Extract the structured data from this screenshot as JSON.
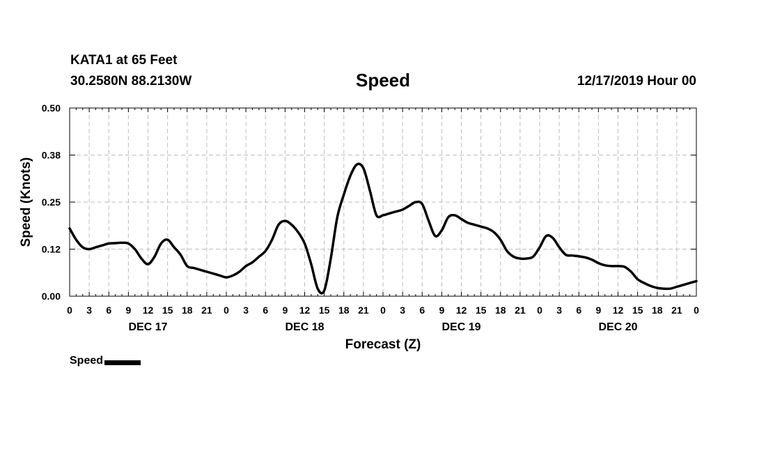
{
  "header": {
    "station": "KATA1 at 65 Feet",
    "coords": "30.2580N 88.2130W",
    "title": "Speed",
    "stamp": "12/17/2019 Hour 00"
  },
  "chart_data": {
    "type": "line",
    "title": "Speed",
    "xlabel": "Forecast (Z)",
    "ylabel": "Speed (Knots)",
    "xlim": [
      0,
      96
    ],
    "ylim": [
      0,
      0.5
    ],
    "yticks": [
      0.0,
      0.125,
      0.25,
      0.375,
      0.5
    ],
    "ytick_labels": [
      "0.00",
      "0.12",
      "0.25",
      "0.38",
      "0.50"
    ],
    "xtick_labels": [
      "0",
      "3",
      "6",
      "9",
      "12",
      "15",
      "18",
      "21",
      "0",
      "3",
      "6",
      "9",
      "12",
      "15",
      "18",
      "21",
      "0",
      "3",
      "6",
      "9",
      "12",
      "15",
      "18",
      "21",
      "0",
      "3",
      "6",
      "9",
      "12",
      "15",
      "18",
      "21",
      "0"
    ],
    "day_labels": [
      {
        "label": "DEC 17",
        "center_hour": 12
      },
      {
        "label": "DEC 18",
        "center_hour": 36
      },
      {
        "label": "DEC 19",
        "center_hour": 60
      },
      {
        "label": "DEC 20",
        "center_hour": 84
      }
    ],
    "grid": true,
    "series": [
      {
        "name": "Speed",
        "color": "#000000",
        "x": [
          0,
          1,
          2,
          3,
          4,
          5,
          6,
          7,
          8,
          9,
          10,
          11,
          12,
          13,
          14,
          15,
          16,
          17,
          18,
          19,
          20,
          21,
          22,
          23,
          24,
          25,
          26,
          27,
          28,
          29,
          30,
          31,
          32,
          33,
          34,
          35,
          36,
          37,
          38,
          39,
          40,
          41,
          42,
          43,
          44,
          45,
          46,
          47,
          48,
          49,
          50,
          51,
          52,
          53,
          54,
          55,
          56,
          57,
          58,
          59,
          60,
          61,
          62,
          63,
          64,
          65,
          66,
          67,
          68,
          69,
          70,
          71,
          72,
          73,
          74,
          75,
          76,
          77,
          78,
          79,
          80,
          81,
          82,
          83,
          84,
          85,
          86,
          87,
          88,
          89,
          90,
          91,
          92,
          93,
          94,
          95,
          96
        ],
        "values": [
          0.18,
          0.15,
          0.13,
          0.125,
          0.13,
          0.135,
          0.14,
          0.141,
          0.142,
          0.14,
          0.125,
          0.1,
          0.085,
          0.105,
          0.14,
          0.15,
          0.13,
          0.11,
          0.08,
          0.075,
          0.07,
          0.065,
          0.06,
          0.055,
          0.05,
          0.055,
          0.065,
          0.08,
          0.09,
          0.105,
          0.12,
          0.15,
          0.19,
          0.2,
          0.19,
          0.17,
          0.14,
          0.085,
          0.02,
          0.015,
          0.1,
          0.21,
          0.27,
          0.32,
          0.35,
          0.34,
          0.28,
          0.215,
          0.215,
          0.22,
          0.225,
          0.23,
          0.24,
          0.25,
          0.245,
          0.2,
          0.16,
          0.175,
          0.21,
          0.215,
          0.205,
          0.195,
          0.19,
          0.185,
          0.18,
          0.17,
          0.15,
          0.12,
          0.105,
          0.1,
          0.1,
          0.105,
          0.13,
          0.16,
          0.155,
          0.13,
          0.11,
          0.108,
          0.106,
          0.103,
          0.097,
          0.088,
          0.082,
          0.08,
          0.08,
          0.078,
          0.065,
          0.045,
          0.035,
          0.027,
          0.022,
          0.02,
          0.02,
          0.025,
          0.03,
          0.035,
          0.04
        ]
      }
    ]
  },
  "legend": {
    "label": "Speed"
  }
}
